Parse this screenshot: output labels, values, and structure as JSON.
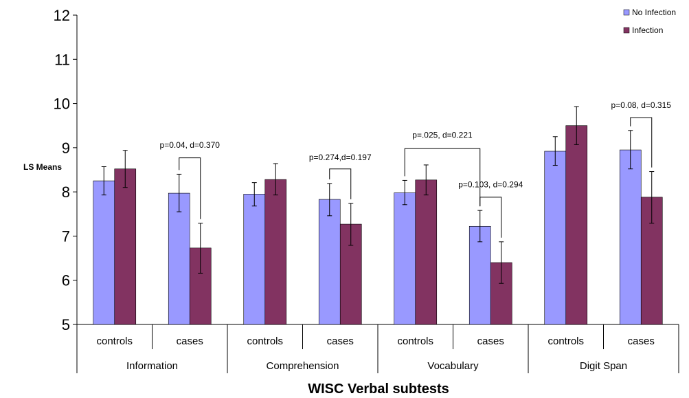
{
  "chart_data": {
    "type": "bar",
    "title": "",
    "xlabel": "WISC Verbal subtests",
    "ylabel": "LS Means",
    "ylim": [
      5,
      12
    ],
    "yticks": [
      "5",
      "6",
      "7",
      "8",
      "9",
      "10",
      "11",
      "12"
    ],
    "legend_position": "top-right",
    "groups": [
      "Information",
      "Comprehension",
      "Vocabulary",
      "Digit Span"
    ],
    "categories": [
      "controls",
      "cases",
      "controls",
      "cases",
      "controls",
      "cases",
      "controls",
      "cases"
    ],
    "series": [
      {
        "name": "No Infection",
        "color": "#9999ff",
        "values": [
          8.25,
          7.97,
          7.95,
          7.83,
          7.98,
          7.22,
          8.92,
          8.95
        ],
        "err_low": [
          7.93,
          7.55,
          7.68,
          7.46,
          7.71,
          6.87,
          8.6,
          8.52
        ],
        "err_high": [
          8.57,
          8.4,
          8.21,
          8.19,
          8.26,
          7.58,
          9.25,
          9.39
        ]
      },
      {
        "name": "Infection",
        "color": "#823361",
        "values": [
          8.52,
          6.73,
          8.28,
          7.27,
          8.27,
          6.4,
          9.5,
          7.88
        ],
        "err_low": [
          8.1,
          6.16,
          7.93,
          6.79,
          7.93,
          5.93,
          9.07,
          7.29
        ],
        "err_high": [
          8.94,
          7.29,
          8.64,
          7.74,
          8.61,
          6.87,
          9.93,
          8.46
        ]
      }
    ],
    "annotations": [
      {
        "text": "p=0.04, d=0.370",
        "from": [
          1,
          0
        ],
        "to": [
          1,
          1
        ],
        "top": 8.77,
        "label_y": 9.0
      },
      {
        "text": "p=0.274,d=0.197",
        "from": [
          3,
          0
        ],
        "to": [
          3,
          1
        ],
        "top": 8.52,
        "label_y": 8.72
      },
      {
        "text": "p=.025, d=0.221",
        "from": [
          4,
          0
        ],
        "to": [
          5,
          0
        ],
        "top": 8.98,
        "label_y": 9.22
      },
      {
        "text": "p=0.103, d=0.294",
        "from": [
          5,
          0
        ],
        "to": [
          5,
          1
        ],
        "top": 7.88,
        "label_y": 8.1
      },
      {
        "text": "p=0.08, d=0.315",
        "from": [
          7,
          0
        ],
        "to": [
          7,
          1
        ],
        "top": 9.68,
        "label_y": 9.9
      }
    ]
  }
}
